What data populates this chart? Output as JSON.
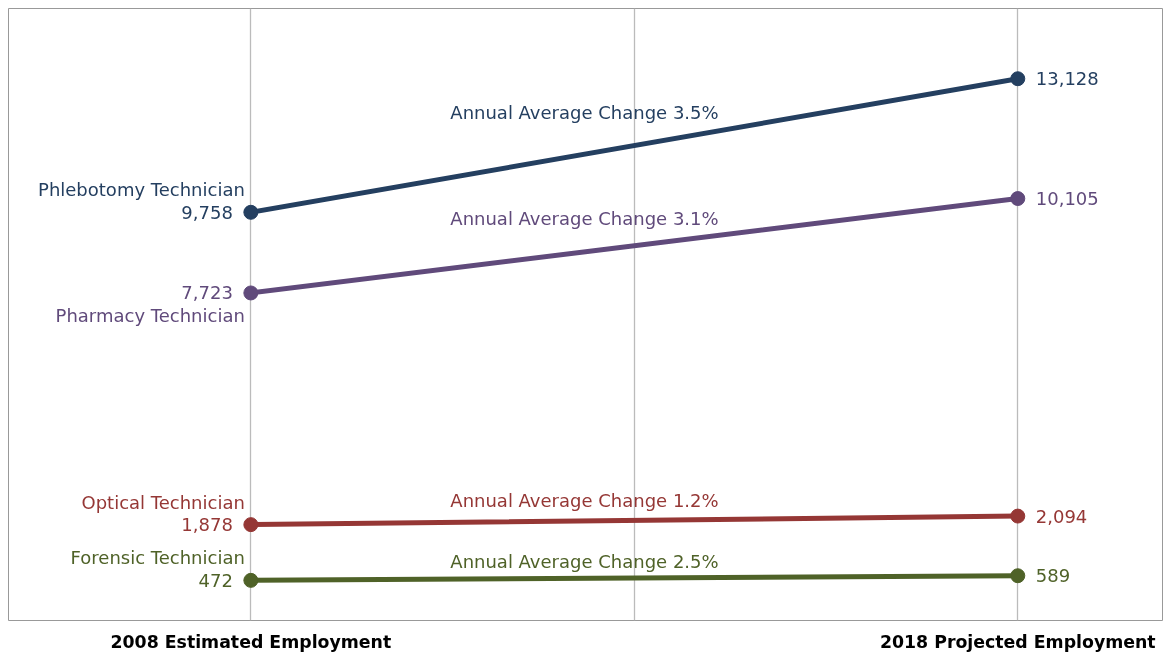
{
  "chart_data": {
    "type": "line",
    "categories": [
      "2008 Estimated Employment",
      "2018 Projected Employment"
    ],
    "series": [
      {
        "name": "Phlebotomy Technician",
        "color": "#243f60",
        "values": [
          9758,
          13128
        ],
        "value_labels": [
          "9,758",
          "13,128"
        ]
      },
      {
        "name": "Pharmacy Technician",
        "color": "#604a7b",
        "values": [
          7723,
          10105
        ],
        "value_labels": [
          "7,723",
          "10,105"
        ]
      },
      {
        "name": "Optical Technician",
        "color": "#953735",
        "values": [
          1878,
          2094
        ],
        "value_labels": [
          "1,878",
          "2,094"
        ]
      },
      {
        "name": "Forensic Technician",
        "color": "#4f6228",
        "values": [
          472,
          589
        ],
        "value_labels": [
          "472",
          "589"
        ]
      }
    ],
    "annotations": [
      "Annual Average Change 3.5%",
      "Annual Average Change 3.1%",
      "Annual Average Change 1.2%",
      "Annual Average Change 2.5%"
    ],
    "marker": "circle",
    "grid": "x",
    "tick_labels": "x"
  }
}
